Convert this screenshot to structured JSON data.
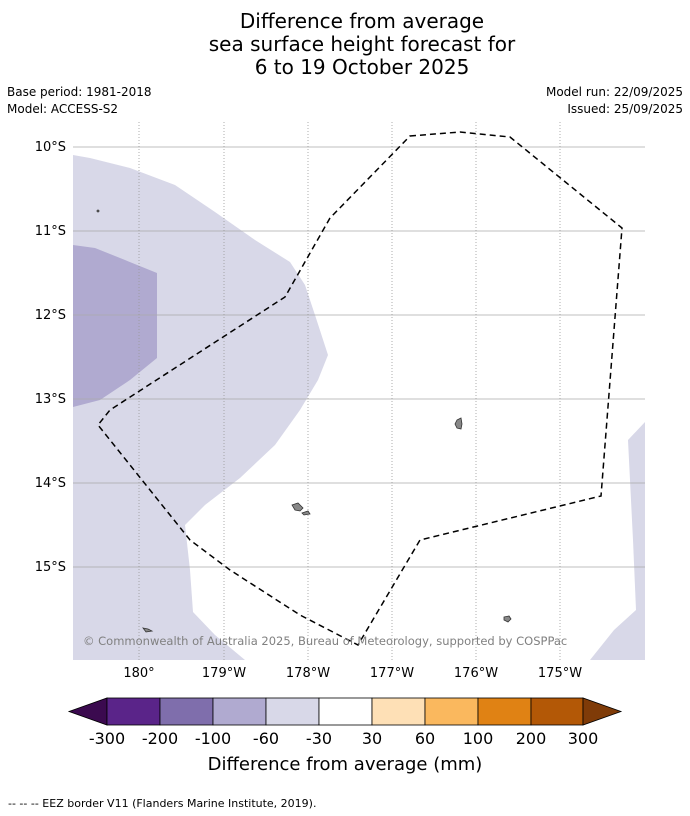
{
  "title": {
    "line1": "Difference from average",
    "line2": "sea surface height forecast for",
    "line3": "6 to 19 October 2025"
  },
  "meta_left": {
    "base_period": "Base period: 1981-2018",
    "model": "Model: ACCESS-S2"
  },
  "meta_right": {
    "model_run": "Model run: 22/09/2025",
    "issued": "Issued: 25/09/2025"
  },
  "map": {
    "lat_labels": [
      "10°S",
      "11°S",
      "12°S",
      "13°S",
      "14°S",
      "15°S"
    ],
    "lon_labels": [
      "180°",
      "179°W",
      "178°W",
      "177°W",
      "176°W",
      "175°W"
    ],
    "copyright": "© Commonwealth of Australia 2025, Bureau of Meteorology, supported by COSPPac",
    "colors": {
      "anom_neg_30_60": "#d8d8e8",
      "anom_neg_60_100": "#b0aad0",
      "land": "#888888",
      "gridline": "#aaaaaa"
    }
  },
  "colorbar": {
    "label": "Difference from average (mm)",
    "ticks": [
      "-300",
      "-200",
      "-100",
      "-60",
      "-30",
      "30",
      "60",
      "100",
      "200",
      "300"
    ],
    "under_color": "#3b0a4f",
    "over_color": "#7f3b08",
    "bins": [
      "#5a2489",
      "#7f6eac",
      "#b0aad0",
      "#d8d8e8",
      "#ffffff",
      "#fee0b6",
      "#fab85e",
      "#e08214",
      "#b35806"
    ]
  },
  "footer": {
    "legend": "--  --  -- EEZ border V11 (Flanders Marine Institute, 2019)."
  }
}
